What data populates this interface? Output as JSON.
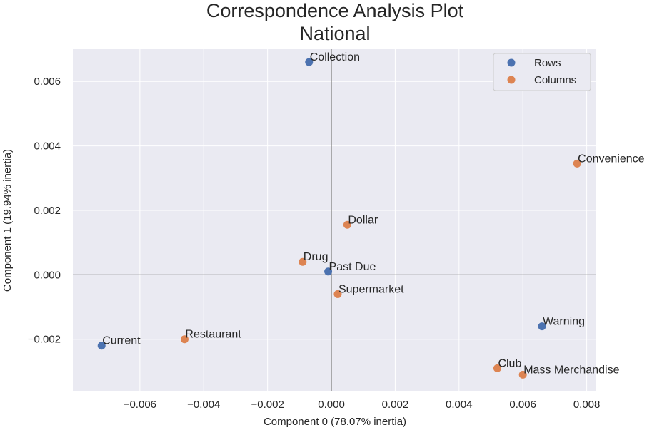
{
  "chart_data": {
    "type": "scatter",
    "title_line1": "Correspondence Analysis Plot",
    "title_line2": "National",
    "xlabel": "Component 0 (78.07% inertia)",
    "ylabel": "Component 1 (19.94% inertia)",
    "xlim": [
      -0.0081,
      0.0083
    ],
    "ylim": [
      -0.0036,
      0.007
    ],
    "xticks": [
      -0.006,
      -0.004,
      -0.002,
      0.0,
      0.002,
      0.004,
      0.006,
      0.008
    ],
    "xtick_labels": [
      "−0.006",
      "−0.004",
      "−0.002",
      "0.000",
      "0.002",
      "0.004",
      "0.006",
      "0.008"
    ],
    "yticks": [
      -0.002,
      0.0,
      0.002,
      0.004,
      0.006
    ],
    "ytick_labels": [
      "−0.002",
      "0.000",
      "0.002",
      "0.004",
      "0.006"
    ],
    "grid": true,
    "legend_position": "top-right",
    "colors": {
      "Rows": "#4c72b0",
      "Columns": "#dd8452",
      "background": "#eaeaf2",
      "reference_lines": "#808080"
    },
    "series": [
      {
        "name": "Rows",
        "points": [
          {
            "label": "Collection",
            "x": -0.0007,
            "y": 0.0066
          },
          {
            "label": "Past Due",
            "x": -0.0001,
            "y": 0.0001
          },
          {
            "label": "Current",
            "x": -0.0072,
            "y": -0.0022
          },
          {
            "label": "Warning",
            "x": 0.0066,
            "y": -0.0016
          }
        ]
      },
      {
        "name": "Columns",
        "points": [
          {
            "label": "Convenience",
            "x": 0.0077,
            "y": 0.00345
          },
          {
            "label": "Dollar",
            "x": 0.0005,
            "y": 0.00155
          },
          {
            "label": "Drug",
            "x": -0.0009,
            "y": 0.0004
          },
          {
            "label": "Supermarket",
            "x": 0.0002,
            "y": -0.0006
          },
          {
            "label": "Restaurant",
            "x": -0.0046,
            "y": -0.002
          },
          {
            "label": "Club",
            "x": 0.0052,
            "y": -0.0029
          },
          {
            "label": "Mass Merchandise",
            "x": 0.006,
            "y": -0.0031
          }
        ]
      }
    ]
  }
}
